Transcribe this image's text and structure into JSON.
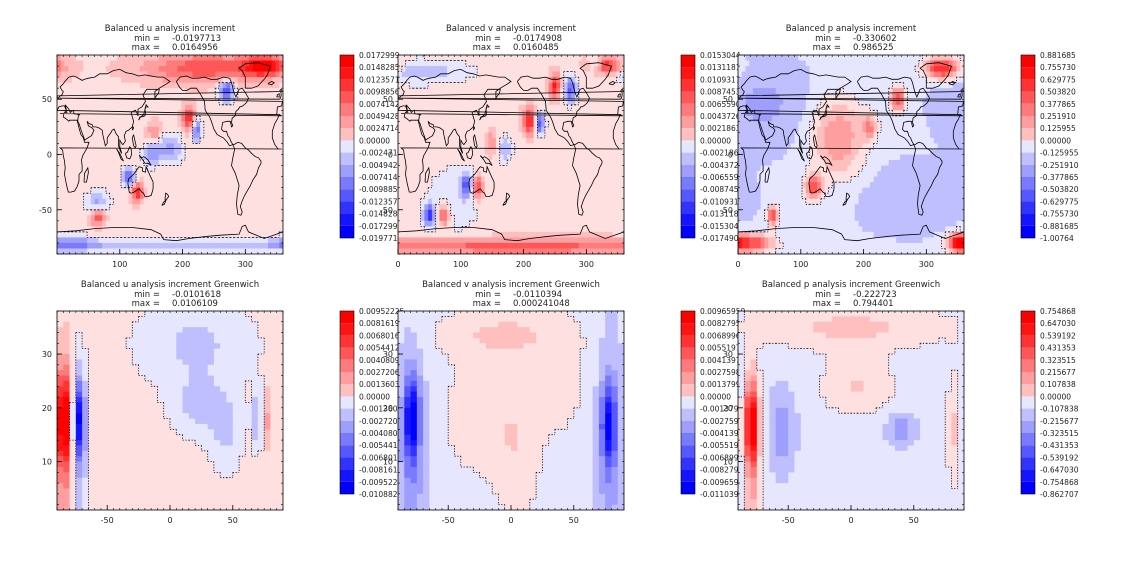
{
  "colors": {
    "pos": "#ff0000",
    "neg": "#0000ff",
    "zero": "#ffffff",
    "coast": "#000000",
    "contour": "#000000"
  },
  "chart_data": [
    {
      "type": "heatmap",
      "title": "Balanced u analysis increment",
      "min_label": "min =",
      "min_value": "-0.0197713",
      "max_label": "max =",
      "max_value": "0.0164956",
      "xlim": [
        0,
        360
      ],
      "ylim": [
        -90,
        90
      ],
      "xticks": [
        {
          "v": 100,
          "t": "100"
        },
        {
          "v": 200,
          "t": "200"
        },
        {
          "v": 300,
          "t": "300"
        }
      ],
      "yticks": [
        {
          "v": -50,
          "t": "-50"
        },
        {
          "v": 0,
          "t": "0"
        },
        {
          "v": 50,
          "t": "50"
        }
      ],
      "map": true,
      "colorbar": [
        "0.0172999",
        "0.0148285",
        "0.0123571",
        "0.00988565",
        "0.00741424",
        "0.00494283",
        "0.00247141",
        "0.00000",
        "-0.00247141",
        "-0.00494283",
        "-0.00741424",
        "-0.00988565",
        "-0.0123571",
        "-0.0148285",
        "-0.0172999",
        "-0.0197713"
      ],
      "field": {
        "background": 0.1,
        "features": [
          {
            "x": 240,
            "y": 78,
            "sx": 70,
            "sy": 9,
            "a": 0.6
          },
          {
            "x": 330,
            "y": 80,
            "sx": 22,
            "sy": 6,
            "a": 0.9
          },
          {
            "x": 270,
            "y": 58,
            "sx": 9,
            "sy": 7,
            "a": -0.85
          },
          {
            "x": 210,
            "y": 32,
            "sx": 7,
            "sy": 8,
            "a": 0.8
          },
          {
            "x": 222,
            "y": 22,
            "sx": 6,
            "sy": 7,
            "a": -0.75
          },
          {
            "x": 155,
            "y": 20,
            "sx": 8,
            "sy": 7,
            "a": 0.35
          },
          {
            "x": 180,
            "y": 5,
            "sx": 14,
            "sy": 10,
            "a": -0.45
          },
          {
            "x": 150,
            "y": 0,
            "sx": 10,
            "sy": 7,
            "a": -0.5
          },
          {
            "x": 115,
            "y": -20,
            "sx": 7,
            "sy": 6,
            "a": -0.75
          },
          {
            "x": 128,
            "y": -34,
            "sx": 6,
            "sy": 6,
            "a": 0.8
          },
          {
            "x": 65,
            "y": -43,
            "sx": 14,
            "sy": 7,
            "a": -0.4
          },
          {
            "x": 65,
            "y": -57,
            "sx": 8,
            "sy": 5,
            "a": 0.6
          },
          {
            "x": 180,
            "y": -83,
            "sx": 200,
            "sy": 4,
            "a": -0.35
          },
          {
            "x": 20,
            "y": -80,
            "sx": 30,
            "sy": 5,
            "a": -0.45
          }
        ]
      }
    },
    {
      "type": "heatmap",
      "title": "Balanced v analysis increment",
      "min_label": "min =",
      "min_value": "-0.0174908",
      "max_label": "max =",
      "max_value": "0.0160485",
      "xlim": [
        0,
        360
      ],
      "ylim": [
        -90,
        90
      ],
      "xticks": [
        {
          "v": 0,
          "t": "0"
        },
        {
          "v": 100,
          "t": "100"
        },
        {
          "v": 200,
          "t": "200"
        },
        {
          "v": 300,
          "t": "300"
        }
      ],
      "yticks": [
        {
          "v": -50,
          "t": "-50"
        },
        {
          "v": 0,
          "t": "0"
        },
        {
          "v": 50,
          "t": "50"
        }
      ],
      "map": true,
      "colorbar": [
        "0.0153044",
        "0.0131181",
        "0.0109317",
        "0.00874539",
        "0.00655904",
        "0.00437269",
        "0.00218635",
        "0.00000",
        "-0.00218635",
        "-0.00437269",
        "-0.00655904",
        "-0.00874539",
        "-0.0109317",
        "-0.0131181",
        "-0.0153044",
        "-0.0174908"
      ],
      "field": {
        "background": 0.1,
        "features": [
          {
            "x": 330,
            "y": 80,
            "sx": 20,
            "sy": 6,
            "a": 0.9
          },
          {
            "x": 315,
            "y": 82,
            "sx": 8,
            "sy": 5,
            "a": -0.6
          },
          {
            "x": 30,
            "y": 75,
            "sx": 60,
            "sy": 8,
            "a": -0.35
          },
          {
            "x": 250,
            "y": 62,
            "sx": 6,
            "sy": 8,
            "a": 0.8
          },
          {
            "x": 275,
            "y": 58,
            "sx": 7,
            "sy": 8,
            "a": -0.75
          },
          {
            "x": 210,
            "y": 30,
            "sx": 8,
            "sy": 8,
            "a": 0.85
          },
          {
            "x": 225,
            "y": 28,
            "sx": 6,
            "sy": 7,
            "a": -0.85
          },
          {
            "x": 150,
            "y": 10,
            "sx": 6,
            "sy": 7,
            "a": 0.4
          },
          {
            "x": 170,
            "y": 5,
            "sx": 8,
            "sy": 8,
            "a": -0.4
          },
          {
            "x": 110,
            "y": -28,
            "sx": 7,
            "sy": 7,
            "a": -0.7
          },
          {
            "x": 127,
            "y": -30,
            "sx": 7,
            "sy": 7,
            "a": 0.8
          },
          {
            "x": 50,
            "y": -55,
            "sx": 7,
            "sy": 7,
            "a": -0.8
          },
          {
            "x": 72,
            "y": -55,
            "sx": 7,
            "sy": 7,
            "a": 0.6
          },
          {
            "x": 90,
            "y": -40,
            "sx": 35,
            "sy": 25,
            "a": -0.2
          },
          {
            "x": 180,
            "y": -83,
            "sx": 200,
            "sy": 5,
            "a": 0.55
          }
        ]
      }
    },
    {
      "type": "heatmap",
      "title": "Balanced p analysis increment",
      "min_label": "min =",
      "min_value": "-0.330602",
      "max_label": "max =",
      "max_value": "0.986525",
      "xlim": [
        0,
        360
      ],
      "ylim": [
        -90,
        90
      ],
      "xticks": [
        {
          "v": 0,
          "t": "0"
        },
        {
          "v": 100,
          "t": "100"
        },
        {
          "v": 200,
          "t": "200"
        },
        {
          "v": 300,
          "t": "300"
        }
      ],
      "yticks": [
        {
          "v": -50,
          "t": "-50"
        },
        {
          "v": 0,
          "t": "0"
        },
        {
          "v": 50,
          "t": "50"
        }
      ],
      "map": true,
      "colorbar": [
        "0.881685",
        "0.755730",
        "0.629775",
        "0.503820",
        "0.377865",
        "0.251910",
        "0.125955",
        "0.00000",
        "-0.125955",
        "-0.251910",
        "-0.377865",
        "-0.503820",
        "-0.629775",
        "-0.755730",
        "-0.881685",
        "-1.00764"
      ],
      "field": {
        "background": -0.12,
        "features": [
          {
            "x": 325,
            "y": 78,
            "sx": 20,
            "sy": 7,
            "a": 1.0
          },
          {
            "x": 255,
            "y": 50,
            "sx": 8,
            "sy": 8,
            "a": 0.85
          },
          {
            "x": 160,
            "y": 15,
            "sx": 30,
            "sy": 25,
            "a": 0.55
          },
          {
            "x": 210,
            "y": 25,
            "sx": 8,
            "sy": 8,
            "a": 0.5
          },
          {
            "x": 120,
            "y": -30,
            "sx": 10,
            "sy": 8,
            "a": 0.8
          },
          {
            "x": 55,
            "y": -55,
            "sx": 6,
            "sy": 6,
            "a": 0.95
          },
          {
            "x": 20,
            "y": -80,
            "sx": 25,
            "sy": 6,
            "a": 0.9
          },
          {
            "x": 350,
            "y": -80,
            "sx": 10,
            "sy": 6,
            "a": 0.85
          },
          {
            "x": 40,
            "y": 45,
            "sx": 50,
            "sy": 25,
            "a": -0.2
          },
          {
            "x": 280,
            "y": -40,
            "sx": 60,
            "sy": 20,
            "a": -0.15
          }
        ]
      }
    },
    {
      "type": "heatmap",
      "title": "Balanced u analysis increment Greenwich",
      "min_label": "min =",
      "min_value": "-0.0101618",
      "max_label": "max =",
      "max_value": "0.0106109",
      "xlim": [
        -90,
        90
      ],
      "ylim": [
        1,
        38
      ],
      "xticks": [
        {
          "v": -50,
          "t": "-50"
        },
        {
          "v": 0,
          "t": "0"
        },
        {
          "v": 50,
          "t": "50"
        }
      ],
      "yticks": [
        {
          "v": 10,
          "t": "10"
        },
        {
          "v": 20,
          "t": "20"
        },
        {
          "v": 30,
          "t": "30"
        }
      ],
      "map": false,
      "colorbar": [
        "0.00952225",
        "0.00816193",
        "0.00680161",
        "0.00544129",
        "0.00408096",
        "0.00272064",
        "0.00136032",
        "0.00000",
        "-0.00136032",
        "-0.00272064",
        "-0.00408096",
        "-0.00544129",
        "-0.00680161",
        "-0.00816193",
        "-0.00952225",
        "-0.0108826"
      ],
      "field": {
        "background": 0.08,
        "features": [
          {
            "x": -84,
            "y": 18,
            "sx": 5,
            "sy": 6,
            "a": 1.0
          },
          {
            "x": -84,
            "y": 10,
            "sx": 5,
            "sy": 14,
            "a": 0.35
          },
          {
            "x": -73,
            "y": 18,
            "sx": 4,
            "sy": 5,
            "a": -0.9
          },
          {
            "x": -73,
            "y": 10,
            "sx": 5,
            "sy": 14,
            "a": -0.35
          },
          {
            "x": 70,
            "y": 18,
            "sx": 3,
            "sy": 4,
            "a": -0.45
          },
          {
            "x": 76,
            "y": 18,
            "sx": 2.5,
            "sy": 4,
            "a": 0.3
          },
          {
            "x": 20,
            "y": 32,
            "sx": 35,
            "sy": 6,
            "a": -0.25
          },
          {
            "x": 25,
            "y": 20,
            "sx": 18,
            "sy": 4,
            "a": -0.25
          },
          {
            "x": 45,
            "y": 14,
            "sx": 10,
            "sy": 5,
            "a": -0.2
          }
        ]
      }
    },
    {
      "type": "heatmap",
      "title": "Balanced v analysis increment Greenwich",
      "min_label": "min =",
      "min_value": "-0.0110394",
      "max_label": "max =",
      "max_value": "0.000241048",
      "xlim": [
        -90,
        90
      ],
      "ylim": [
        1,
        38
      ],
      "xticks": [
        {
          "v": -50,
          "t": "-50"
        },
        {
          "v": 0,
          "t": "0"
        },
        {
          "v": 50,
          "t": "50"
        }
      ],
      "yticks": [
        {
          "v": 10,
          "t": "10"
        },
        {
          "v": 20,
          "t": "20"
        },
        {
          "v": 30,
          "t": "30"
        }
      ],
      "map": false,
      "colorbar": [
        "0.00965950",
        "0.00827957",
        "0.00689964",
        "0.00551972",
        "0.00413979",
        "0.00275986",
        "0.00137993",
        "0.00000",
        "-0.00137993",
        "-0.00275986",
        "-0.00413979",
        "-0.00551972",
        "-0.00689964",
        "-0.00827957",
        "-0.00965950",
        "-0.0110394"
      ],
      "field": {
        "background": -0.12,
        "features": [
          {
            "x": -79,
            "y": 18,
            "sx": 4,
            "sy": 5,
            "a": -0.85
          },
          {
            "x": -79,
            "y": 12,
            "sx": 7,
            "sy": 14,
            "a": -0.3
          },
          {
            "x": 78,
            "y": 17,
            "sx": 4,
            "sy": 5,
            "a": -0.75
          },
          {
            "x": 78,
            "y": 12,
            "sx": 7,
            "sy": 14,
            "a": -0.25
          },
          {
            "x": -30,
            "y": 18,
            "sx": 20,
            "sy": 8,
            "a": 0.22
          },
          {
            "x": 5,
            "y": 12,
            "sx": 15,
            "sy": 12,
            "a": 0.22
          },
          {
            "x": -10,
            "y": 34,
            "sx": 40,
            "sy": 4,
            "a": 0.25
          },
          {
            "x": 40,
            "y": 25,
            "sx": 15,
            "sy": 8,
            "a": 0.2
          }
        ]
      }
    },
    {
      "type": "heatmap",
      "title": "Balanced p analysis increment Greenwich",
      "min_label": "min =",
      "min_value": "-0.222723",
      "max_label": "max =",
      "max_value": "0.794401",
      "xlim": [
        -90,
        90
      ],
      "ylim": [
        1,
        38
      ],
      "xticks": [
        {
          "v": -50,
          "t": "-50"
        },
        {
          "v": 0,
          "t": "0"
        },
        {
          "v": 50,
          "t": "50"
        }
      ],
      "yticks": [
        {
          "v": 10,
          "t": "10"
        },
        {
          "v": 20,
          "t": "20"
        },
        {
          "v": 30,
          "t": "30"
        }
      ],
      "map": false,
      "colorbar": [
        "0.754868",
        "0.647030",
        "0.539192",
        "0.431353",
        "0.323515",
        "0.215677",
        "0.107838",
        "0.00000",
        "-0.107838",
        "-0.215677",
        "-0.323515",
        "-0.431353",
        "-0.539192",
        "-0.647030",
        "-0.754868",
        "-0.862707"
      ],
      "field": {
        "background": -0.1,
        "features": [
          {
            "x": -79,
            "y": 17,
            "sx": 4,
            "sy": 5,
            "a": 1.0
          },
          {
            "x": -79,
            "y": 10,
            "sx": 4,
            "sy": 14,
            "a": 0.45
          },
          {
            "x": 81,
            "y": 16,
            "sx": 3,
            "sy": 8,
            "a": 0.3
          },
          {
            "x": 0,
            "y": 35,
            "sx": 60,
            "sy": 3,
            "a": 0.28
          },
          {
            "x": 5,
            "y": 24,
            "sx": 22,
            "sy": 4,
            "a": 0.25
          },
          {
            "x": -55,
            "y": 16,
            "sx": 7,
            "sy": 5,
            "a": -0.3
          },
          {
            "x": 40,
            "y": 16,
            "sx": 8,
            "sy": 2,
            "a": -0.3
          }
        ]
      }
    }
  ]
}
